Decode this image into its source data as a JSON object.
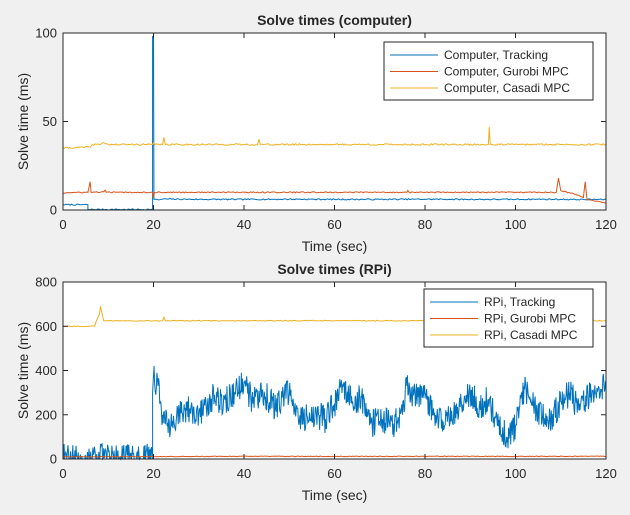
{
  "colors": {
    "figure_bg": "#f0f0f0",
    "axes_bg": "#ffffff",
    "axis": "#262626",
    "series": [
      "#0072BD",
      "#D95319",
      "#EDB120"
    ]
  },
  "chart_data": [
    {
      "type": "line",
      "title": "Solve times (computer)",
      "xlabel": "Time (sec)",
      "ylabel": "Solve time (ms)",
      "xlim": [
        0,
        120
      ],
      "ylim": [
        0,
        100
      ],
      "xticks": [
        "0",
        "20",
        "40",
        "60",
        "80",
        "100",
        "120"
      ],
      "yticks": [
        "0",
        "50",
        "100"
      ],
      "grid": false,
      "legend_position": "top-right",
      "series": [
        {
          "name": "Computer, Tracking",
          "color": "#0072BD",
          "points": [
            [
              0,
              3
            ],
            [
              5.5,
              3
            ],
            [
              5.5,
              0.3
            ],
            [
              19.8,
              0.3
            ],
            [
              19.8,
              98
            ],
            [
              20,
              98
            ],
            [
              20.1,
              6
            ],
            [
              21,
              5.7
            ],
            [
              22,
              6.2
            ],
            [
              30,
              6
            ],
            [
              40,
              6
            ],
            [
              50,
              6.1
            ],
            [
              60,
              6
            ],
            [
              70,
              6
            ],
            [
              80,
              6.1
            ],
            [
              90,
              6
            ],
            [
              100,
              6
            ],
            [
              105,
              6.1
            ],
            [
              110,
              6
            ],
            [
              115,
              5.9
            ],
            [
              120,
              6
            ]
          ],
          "noise": 0.35
        },
        {
          "name": "Computer, Gurobi MPC",
          "color": "#D95319",
          "points": [
            [
              0,
              9.5
            ],
            [
              1,
              9.8
            ],
            [
              5.5,
              10
            ],
            [
              6,
              16
            ],
            [
              6.2,
              10
            ],
            [
              9,
              10.2
            ],
            [
              9.3,
              11.2
            ],
            [
              9.6,
              10
            ],
            [
              19.8,
              10
            ],
            [
              20,
              7
            ],
            [
              20.2,
              10
            ],
            [
              40,
              10
            ],
            [
              60,
              10
            ],
            [
              76,
              10
            ],
            [
              76.2,
              11
            ],
            [
              76.5,
              10
            ],
            [
              100,
              10
            ],
            [
              109,
              10
            ],
            [
              109.5,
              18
            ],
            [
              110,
              11
            ],
            [
              113,
              9
            ],
            [
              115,
              7
            ],
            [
              115.4,
              16
            ],
            [
              115.8,
              6
            ],
            [
              118,
              5
            ],
            [
              120,
              4
            ]
          ],
          "noise": 0.3
        },
        {
          "name": "Computer, Casadi MPC",
          "color": "#EDB120",
          "points": [
            [
              0,
              35
            ],
            [
              6,
              35.5
            ],
            [
              6.5,
              37
            ],
            [
              8,
              37
            ],
            [
              9,
              38
            ],
            [
              10,
              37
            ],
            [
              19.8,
              37
            ],
            [
              20,
              38
            ],
            [
              20.3,
              37
            ],
            [
              22,
              37
            ],
            [
              22.3,
              41
            ],
            [
              22.6,
              37
            ],
            [
              43,
              37
            ],
            [
              43.3,
              40
            ],
            [
              43.6,
              37
            ],
            [
              60,
              37
            ],
            [
              85,
              37
            ],
            [
              94,
              37
            ],
            [
              94.2,
              47
            ],
            [
              94.4,
              37
            ],
            [
              110,
              37
            ],
            [
              120,
              37
            ]
          ],
          "noise": 0.45
        }
      ]
    },
    {
      "type": "line",
      "title": "Solve times (RPi)",
      "xlabel": "Time (sec)",
      "ylabel": "Solve time (ms)",
      "xlim": [
        0,
        120
      ],
      "ylim": [
        0,
        800
      ],
      "xticks": [
        "0",
        "20",
        "40",
        "60",
        "80",
        "100",
        "120"
      ],
      "yticks": [
        "0",
        "200",
        "400",
        "600",
        "800"
      ],
      "grid": false,
      "legend_position": "top-right",
      "series": [
        {
          "name": "RPi, Tracking",
          "color": "#0072BD",
          "points": [
            [
              0,
              5
            ],
            [
              19.8,
              5
            ],
            [
              19.8,
              300
            ],
            [
              20,
              380
            ],
            [
              21,
              330
            ],
            [
              22,
              200
            ],
            [
              23,
              150
            ],
            [
              25,
              170
            ],
            [
              27,
              230
            ],
            [
              30,
              200
            ],
            [
              33,
              280
            ],
            [
              36,
              260
            ],
            [
              38,
              300
            ],
            [
              40,
              350
            ],
            [
              42,
              250
            ],
            [
              44,
              310
            ],
            [
              47,
              230
            ],
            [
              50,
              300
            ],
            [
              52,
              180
            ],
            [
              54,
              190
            ],
            [
              56,
              200
            ],
            [
              58,
              180
            ],
            [
              60,
              250
            ],
            [
              62,
              340
            ],
            [
              64,
              260
            ],
            [
              66,
              280
            ],
            [
              68,
              160
            ],
            [
              70,
              170
            ],
            [
              73,
              160
            ],
            [
              75,
              200
            ],
            [
              76,
              330
            ],
            [
              78,
              280
            ],
            [
              80,
              300
            ],
            [
              82,
              200
            ],
            [
              84,
              170
            ],
            [
              86,
              180
            ],
            [
              88,
              260
            ],
            [
              90,
              300
            ],
            [
              92,
              240
            ],
            [
              94,
              270
            ],
            [
              96,
              150
            ],
            [
              98,
              100
            ],
            [
              100,
              150
            ],
            [
              102,
              320
            ],
            [
              104,
              240
            ],
            [
              106,
              200
            ],
            [
              108,
              190
            ],
            [
              110,
              260
            ],
            [
              112,
              300
            ],
            [
              114,
              220
            ],
            [
              116,
              280
            ],
            [
              118,
              320
            ],
            [
              120,
              330
            ]
          ],
          "noise": 65
        },
        {
          "name": "RPi, Gurobi MPC",
          "color": "#D95319",
          "points": [
            [
              0,
              10
            ],
            [
              40,
              12
            ],
            [
              80,
              12
            ],
            [
              120,
              12
            ]
          ],
          "noise": 1.5
        },
        {
          "name": "RPi, Casadi MPC",
          "color": "#EDB120",
          "points": [
            [
              0,
              600
            ],
            [
              7,
              600
            ],
            [
              7.3,
              620
            ],
            [
              8,
              650
            ],
            [
              8.3,
              690
            ],
            [
              8.6,
              660
            ],
            [
              9,
              625
            ],
            [
              20,
              625
            ],
            [
              22,
              625
            ],
            [
              22.3,
              640
            ],
            [
              22.6,
              625
            ],
            [
              60,
              625
            ],
            [
              90,
              625
            ],
            [
              120,
              625
            ]
          ],
          "noise": 2
        }
      ]
    }
  ]
}
